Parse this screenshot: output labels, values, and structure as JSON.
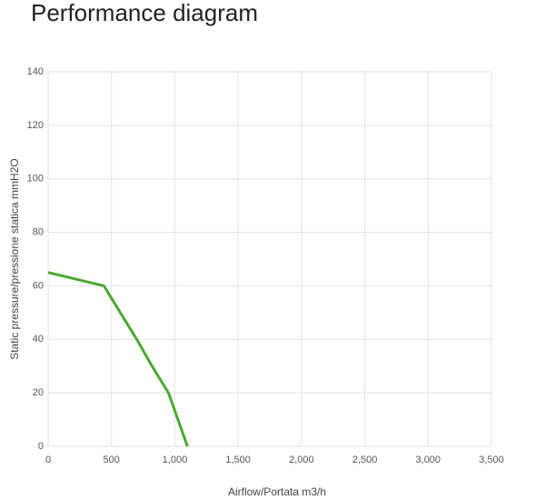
{
  "chart_data": {
    "type": "line",
    "title": "Performance diagram",
    "x_label": "Airflow/Portata m3/h",
    "y_label": "Static pressure/pressione statica mmH2O",
    "x": [
      0,
      440,
      700,
      820,
      950,
      1100
    ],
    "series": [
      {
        "color": "#4aa832",
        "values": [
          65,
          60,
          40,
          30,
          20,
          0
        ]
      }
    ],
    "xlim": [
      0,
      3500
    ],
    "xticks": [
      0,
      500,
      {
        "value": 1000,
        "label": "1,000"
      },
      {
        "value": 1500,
        "label": "1,500"
      },
      {
        "value": 2000,
        "label": "2,000"
      },
      {
        "value": 2500,
        "label": "2,500"
      },
      {
        "value": 3000,
        "label": "3,000"
      },
      {
        "value": 3500,
        "label": "3,500"
      }
    ],
    "ylim": [
      0,
      140
    ],
    "yticks": [
      0,
      20,
      40,
      60,
      80,
      100,
      120,
      140
    ],
    "grid": true
  }
}
